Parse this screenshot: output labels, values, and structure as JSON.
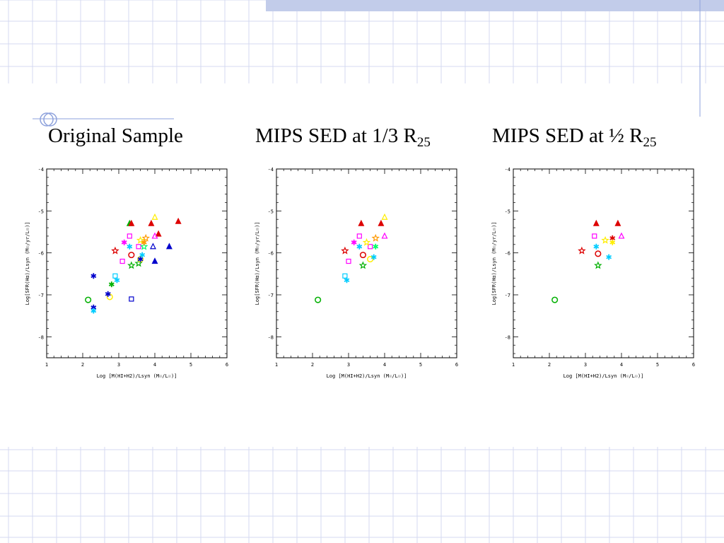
{
  "slide": {
    "colors": {
      "grid": "#d4daf0",
      "band": "#c2ccea",
      "accent_line": "#8ea2dc"
    },
    "decor_icon": "crescent-circle-icon"
  },
  "headings": [
    {
      "text": "Original Sample",
      "sub": ""
    },
    {
      "text": "MIPS SED  at 1/3 R",
      "sub": "25"
    },
    {
      "text": "MIPS SED at ½ R",
      "sub": "25"
    }
  ],
  "chart_data": [
    {
      "type": "scatter",
      "title": "Original Sample",
      "xlabel": "Log [M(HI+H2)/Lsyn (M☉/L☉)]",
      "ylabel": "Log[SFR(Hα)/Lsyn (M☉/yr/L☉)]",
      "xlim": [
        1,
        6
      ],
      "ylim": [
        -8.5,
        -4
      ],
      "xticks": [
        "1",
        "2",
        "3",
        "4",
        "5",
        "6"
      ],
      "yticks": [
        "-4",
        "-5",
        "-6",
        "-7",
        "-8"
      ],
      "points": [
        {
          "x": 3.3,
          "y": -5.3,
          "marker": "triangle-filled",
          "color": "#00b000"
        },
        {
          "x": 3.35,
          "y": -5.3,
          "marker": "triangle-filled",
          "color": "#dd0000"
        },
        {
          "x": 3.9,
          "y": -5.3,
          "marker": "triangle-filled",
          "color": "#dd0000"
        },
        {
          "x": 4.65,
          "y": -5.25,
          "marker": "triangle-filled",
          "color": "#dd0000"
        },
        {
          "x": 4.1,
          "y": -5.55,
          "marker": "triangle-filled",
          "color": "#dd0000"
        },
        {
          "x": 4.0,
          "y": -5.15,
          "marker": "triangle-open",
          "color": "#ffee00"
        },
        {
          "x": 4.0,
          "y": -5.6,
          "marker": "triangle-open",
          "color": "#ff00ff"
        },
        {
          "x": 3.95,
          "y": -5.85,
          "marker": "triangle-open",
          "color": "#0000cc"
        },
        {
          "x": 4.4,
          "y": -5.85,
          "marker": "triangle-filled",
          "color": "#0000cc"
        },
        {
          "x": 4.0,
          "y": -6.2,
          "marker": "triangle-filled",
          "color": "#0000cc"
        },
        {
          "x": 3.3,
          "y": -5.6,
          "marker": "square-open",
          "color": "#ff00ff"
        },
        {
          "x": 3.1,
          "y": -6.2,
          "marker": "square-open",
          "color": "#ff00ff"
        },
        {
          "x": 3.55,
          "y": -5.85,
          "marker": "square-open",
          "color": "#ff00ff"
        },
        {
          "x": 2.9,
          "y": -6.55,
          "marker": "square-open",
          "color": "#00ccff"
        },
        {
          "x": 3.35,
          "y": -7.1,
          "marker": "square-open",
          "color": "#0000cc"
        },
        {
          "x": 2.9,
          "y": -5.95,
          "marker": "star-open",
          "color": "#dd0000"
        },
        {
          "x": 3.75,
          "y": -5.65,
          "marker": "star-open",
          "color": "#ff9900"
        },
        {
          "x": 3.35,
          "y": -6.3,
          "marker": "star-open",
          "color": "#00b000"
        },
        {
          "x": 3.55,
          "y": -6.25,
          "marker": "star-open",
          "color": "#00b000"
        },
        {
          "x": 3.6,
          "y": -5.7,
          "marker": "star-open",
          "color": "#ffee00"
        },
        {
          "x": 3.7,
          "y": -5.85,
          "marker": "star-open",
          "color": "#00ff66"
        },
        {
          "x": 3.35,
          "y": -6.05,
          "marker": "circle-open",
          "color": "#dd0000"
        },
        {
          "x": 2.15,
          "y": -7.12,
          "marker": "circle-open",
          "color": "#00b000"
        },
        {
          "x": 2.75,
          "y": -7.05,
          "marker": "circle-open",
          "color": "#ffee00"
        },
        {
          "x": 3.6,
          "y": -6.15,
          "marker": "circle-open",
          "color": "#ffee00"
        },
        {
          "x": 2.3,
          "y": -6.55,
          "marker": "asterisk",
          "color": "#0000cc"
        },
        {
          "x": 2.7,
          "y": -6.98,
          "marker": "asterisk",
          "color": "#0000cc"
        },
        {
          "x": 2.3,
          "y": -7.3,
          "marker": "asterisk",
          "color": "#0000cc"
        },
        {
          "x": 3.6,
          "y": -6.15,
          "marker": "asterisk",
          "color": "#0000cc"
        },
        {
          "x": 2.3,
          "y": -7.38,
          "marker": "asterisk",
          "color": "#00ccff"
        },
        {
          "x": 2.95,
          "y": -6.65,
          "marker": "asterisk",
          "color": "#00ccff"
        },
        {
          "x": 3.65,
          "y": -6.05,
          "marker": "asterisk",
          "color": "#00ccff"
        },
        {
          "x": 3.3,
          "y": -5.85,
          "marker": "asterisk",
          "color": "#00ccff"
        },
        {
          "x": 2.8,
          "y": -6.75,
          "marker": "asterisk",
          "color": "#00b000"
        },
        {
          "x": 3.15,
          "y": -5.75,
          "marker": "asterisk",
          "color": "#ff00ff"
        },
        {
          "x": 3.7,
          "y": -5.75,
          "marker": "asterisk",
          "color": "#ff9900"
        }
      ]
    },
    {
      "type": "scatter",
      "title": "MIPS SED  at 1/3 R25",
      "xlabel": "Log [M(HI+H2)/Lsyn (M☉/L☉)]",
      "ylabel": "Log[SFR(Hα)/Lsyn (M☉/yr/L☉)]",
      "xlim": [
        1,
        6
      ],
      "ylim": [
        -8.5,
        -4
      ],
      "xticks": [
        "1",
        "2",
        "3",
        "4",
        "5",
        "6"
      ],
      "yticks": [
        "-4",
        "-5",
        "-6",
        "-7",
        "-8"
      ],
      "points": [
        {
          "x": 3.35,
          "y": -5.3,
          "marker": "triangle-filled",
          "color": "#dd0000"
        },
        {
          "x": 3.9,
          "y": -5.3,
          "marker": "triangle-filled",
          "color": "#dd0000"
        },
        {
          "x": 4.0,
          "y": -5.15,
          "marker": "triangle-open",
          "color": "#ffee00"
        },
        {
          "x": 4.0,
          "y": -5.6,
          "marker": "triangle-open",
          "color": "#ff00ff"
        },
        {
          "x": 3.3,
          "y": -5.6,
          "marker": "square-open",
          "color": "#ff00ff"
        },
        {
          "x": 3.0,
          "y": -6.2,
          "marker": "square-open",
          "color": "#ff00ff"
        },
        {
          "x": 3.6,
          "y": -5.85,
          "marker": "square-open",
          "color": "#ff00ff"
        },
        {
          "x": 2.9,
          "y": -6.55,
          "marker": "square-open",
          "color": "#00ccff"
        },
        {
          "x": 2.9,
          "y": -5.95,
          "marker": "star-open",
          "color": "#dd0000"
        },
        {
          "x": 3.75,
          "y": -5.65,
          "marker": "star-open",
          "color": "#ff9900"
        },
        {
          "x": 3.4,
          "y": -6.3,
          "marker": "star-open",
          "color": "#00b000"
        },
        {
          "x": 3.5,
          "y": -5.75,
          "marker": "star-open",
          "color": "#ffee00"
        },
        {
          "x": 3.4,
          "y": -6.05,
          "marker": "circle-open",
          "color": "#dd0000"
        },
        {
          "x": 2.15,
          "y": -7.12,
          "marker": "circle-open",
          "color": "#00b000"
        },
        {
          "x": 3.6,
          "y": -6.15,
          "marker": "circle-open",
          "color": "#ffee00"
        },
        {
          "x": 3.7,
          "y": -6.1,
          "marker": "asterisk",
          "color": "#00ccff"
        },
        {
          "x": 2.95,
          "y": -6.65,
          "marker": "asterisk",
          "color": "#00ccff"
        },
        {
          "x": 3.3,
          "y": -5.85,
          "marker": "asterisk",
          "color": "#00ccff"
        },
        {
          "x": 3.15,
          "y": -5.75,
          "marker": "asterisk",
          "color": "#ff00ff"
        },
        {
          "x": 3.75,
          "y": -5.85,
          "marker": "asterisk",
          "color": "#00ff66"
        }
      ]
    },
    {
      "type": "scatter",
      "title": "MIPS SED at ½ R25",
      "xlabel": "Log [M(HI+H2)/Lsyn (M☉/L☉)]",
      "ylabel": "Log[SFR(Hα)/Lsyn (M☉/yr/L☉)]",
      "xlim": [
        1,
        6
      ],
      "ylim": [
        -8.5,
        -4
      ],
      "xticks": [
        "1",
        "2",
        "3",
        "4",
        "5",
        "6"
      ],
      "yticks": [
        "-4",
        "-5",
        "-6",
        "-7",
        "-8"
      ],
      "points": [
        {
          "x": 3.3,
          "y": -5.3,
          "marker": "triangle-filled",
          "color": "#dd0000"
        },
        {
          "x": 3.9,
          "y": -5.3,
          "marker": "triangle-filled",
          "color": "#dd0000"
        },
        {
          "x": 4.0,
          "y": -5.6,
          "marker": "triangle-open",
          "color": "#ff00ff"
        },
        {
          "x": 3.25,
          "y": -5.6,
          "marker": "square-open",
          "color": "#ff00ff"
        },
        {
          "x": 2.9,
          "y": -5.95,
          "marker": "star-open",
          "color": "#dd0000"
        },
        {
          "x": 3.35,
          "y": -6.3,
          "marker": "star-open",
          "color": "#00b000"
        },
        {
          "x": 3.55,
          "y": -5.7,
          "marker": "star-open",
          "color": "#ffee00"
        },
        {
          "x": 3.35,
          "y": -6.02,
          "marker": "circle-open",
          "color": "#dd0000"
        },
        {
          "x": 2.15,
          "y": -7.12,
          "marker": "circle-open",
          "color": "#00b000"
        },
        {
          "x": 3.3,
          "y": -5.85,
          "marker": "asterisk",
          "color": "#00ccff"
        },
        {
          "x": 3.65,
          "y": -6.1,
          "marker": "asterisk",
          "color": "#00ccff"
        },
        {
          "x": 3.75,
          "y": -5.65,
          "marker": "asterisk",
          "color": "#dd0000"
        },
        {
          "x": 3.75,
          "y": -5.75,
          "marker": "asterisk",
          "color": "#ffee00"
        }
      ]
    }
  ]
}
